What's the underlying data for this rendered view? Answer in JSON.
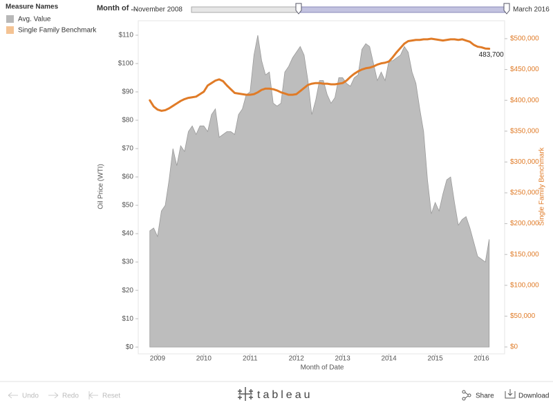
{
  "ui": {
    "legend_title": "Measure Names",
    "filter_title": "Month of ...",
    "filter_start": "November 2008",
    "filter_end": "March 2016",
    "toolbar": {
      "undo": "Undo",
      "redo": "Redo",
      "reset": "Reset",
      "logo": "tableau",
      "share": "Share",
      "download": "Download"
    }
  },
  "chart_data": {
    "type": "combo",
    "xlabel": "Month of Date",
    "ylabel": "Oil Price (WTI)",
    "y2label": "Single Family Benchmark",
    "x": [
      "2008-11",
      "2008-12",
      "2009-01",
      "2009-02",
      "2009-03",
      "2009-04",
      "2009-05",
      "2009-06",
      "2009-07",
      "2009-08",
      "2009-09",
      "2009-10",
      "2009-11",
      "2009-12",
      "2010-01",
      "2010-02",
      "2010-03",
      "2010-04",
      "2010-05",
      "2010-06",
      "2010-07",
      "2010-08",
      "2010-09",
      "2010-10",
      "2010-11",
      "2010-12",
      "2011-01",
      "2011-02",
      "2011-03",
      "2011-04",
      "2011-05",
      "2011-06",
      "2011-07",
      "2011-08",
      "2011-09",
      "2011-10",
      "2011-11",
      "2011-12",
      "2012-01",
      "2012-02",
      "2012-03",
      "2012-04",
      "2012-05",
      "2012-06",
      "2012-07",
      "2012-08",
      "2012-09",
      "2012-10",
      "2012-11",
      "2012-12",
      "2013-01",
      "2013-02",
      "2013-03",
      "2013-04",
      "2013-05",
      "2013-06",
      "2013-07",
      "2013-08",
      "2013-09",
      "2013-10",
      "2013-11",
      "2013-12",
      "2014-01",
      "2014-02",
      "2014-03",
      "2014-04",
      "2014-05",
      "2014-06",
      "2014-07",
      "2014-08",
      "2014-09",
      "2014-10",
      "2014-11",
      "2014-12",
      "2015-01",
      "2015-02",
      "2015-03",
      "2015-04",
      "2015-05",
      "2015-06",
      "2015-07",
      "2015-08",
      "2015-09",
      "2015-10",
      "2015-11",
      "2015-12",
      "2016-01",
      "2016-02",
      "2016-03"
    ],
    "series": [
      {
        "name": "Avg. Value",
        "type": "area",
        "color": "#bdbdbd",
        "stroke": "#9a9a9a",
        "legend_color": "#b8b8b8",
        "values": [
          41,
          42,
          39,
          48,
          50,
          59,
          70,
          64,
          71,
          69,
          76,
          78,
          75,
          78,
          78,
          76,
          82,
          84,
          74,
          75,
          76,
          76,
          75,
          82,
          84,
          89,
          90,
          103,
          110,
          101,
          96,
          97,
          86,
          85,
          86,
          97,
          99,
          102,
          104,
          106,
          103,
          94,
          82,
          87,
          94,
          94,
          89,
          86,
          88,
          95,
          95,
          93,
          92,
          95,
          96,
          105,
          107,
          106,
          100,
          94,
          97,
          94,
          101,
          101,
          102,
          103,
          106,
          104,
          97,
          93,
          84,
          76,
          59,
          47,
          51,
          48,
          54,
          59,
          60,
          51,
          43,
          45,
          46,
          42,
          37,
          32,
          31,
          30,
          38
        ]
      },
      {
        "name": "Single Family Benchmark",
        "type": "line",
        "axis": "y2",
        "color": "#e07b27",
        "legend_color": "#f4c393",
        "values": [
          400000,
          390000,
          385000,
          383000,
          384000,
          387000,
          391000,
          395000,
          399000,
          402000,
          404000,
          405000,
          406000,
          410000,
          414000,
          424000,
          428000,
          432000,
          434000,
          431000,
          424000,
          418000,
          412000,
          411000,
          410000,
          409000,
          409000,
          410000,
          413000,
          417000,
          419000,
          419000,
          418000,
          416000,
          413000,
          411000,
          409000,
          409000,
          410000,
          415000,
          420000,
          425000,
          427000,
          428000,
          428000,
          427000,
          427000,
          426000,
          426000,
          427000,
          428000,
          432000,
          438000,
          443000,
          447000,
          450000,
          452000,
          453000,
          455000,
          458000,
          460000,
          461000,
          463000,
          470000,
          478000,
          485000,
          492000,
          496000,
          497000,
          498000,
          498000,
          499000,
          499000,
          500000,
          499000,
          498000,
          497000,
          498000,
          499000,
          499000,
          498000,
          499000,
          497000,
          495000,
          490000,
          487000,
          486000,
          484000,
          483700
        ],
        "value_labels": [
          null,
          null,
          null,
          null,
          null,
          null,
          null,
          null,
          null,
          null,
          null,
          null,
          null,
          null,
          null,
          null,
          null,
          null,
          null,
          null,
          null,
          null,
          null,
          null,
          null,
          null,
          null,
          null,
          null,
          null,
          null,
          null,
          null,
          null,
          null,
          null,
          null,
          null,
          null,
          null,
          null,
          null,
          null,
          null,
          null,
          null,
          null,
          null,
          null,
          null,
          null,
          null,
          null,
          null,
          null,
          null,
          null,
          null,
          null,
          null,
          null,
          null,
          null,
          null,
          null,
          null,
          null,
          null,
          null,
          null,
          null,
          null,
          null,
          null,
          null,
          null,
          null,
          null,
          null,
          null,
          null,
          null,
          null,
          null,
          null,
          null,
          null,
          null,
          "483,700"
        ]
      }
    ],
    "xlim": [
      "2008-08",
      "2016-07"
    ],
    "xticks": [
      "2009",
      "2010",
      "2011",
      "2012",
      "2013",
      "2014",
      "2015",
      "2016"
    ],
    "ylim": [
      -2.4,
      115.1
    ],
    "yticks": [
      {
        "value": 0,
        "label": "$0"
      },
      {
        "value": 10,
        "label": "$10"
      },
      {
        "value": 20,
        "label": "$20"
      },
      {
        "value": 30,
        "label": "$30"
      },
      {
        "value": 40,
        "label": "$40"
      },
      {
        "value": 50,
        "label": "$50"
      },
      {
        "value": 60,
        "label": "$60"
      },
      {
        "value": 70,
        "label": "$70"
      },
      {
        "value": 80,
        "label": "$80"
      },
      {
        "value": 90,
        "label": "$90"
      },
      {
        "value": 100,
        "label": "$100"
      },
      {
        "value": 110,
        "label": "$110"
      }
    ],
    "y2lim": [
      -11200,
      529100
    ],
    "y2ticks": [
      {
        "value": 0,
        "label": "$0"
      },
      {
        "value": 50000,
        "label": "$50,000"
      },
      {
        "value": 100000,
        "label": "$100,000"
      },
      {
        "value": 150000,
        "label": "$150,000"
      },
      {
        "value": 200000,
        "label": "$200,000"
      },
      {
        "value": 250000,
        "label": "$250,000"
      },
      {
        "value": 300000,
        "label": "$300,000"
      },
      {
        "value": 350000,
        "label": "$350,000"
      },
      {
        "value": 400000,
        "label": "$400,000"
      },
      {
        "value": 450000,
        "label": "$450,000"
      },
      {
        "value": 500000,
        "label": "$500,000"
      }
    ],
    "grid": false
  }
}
